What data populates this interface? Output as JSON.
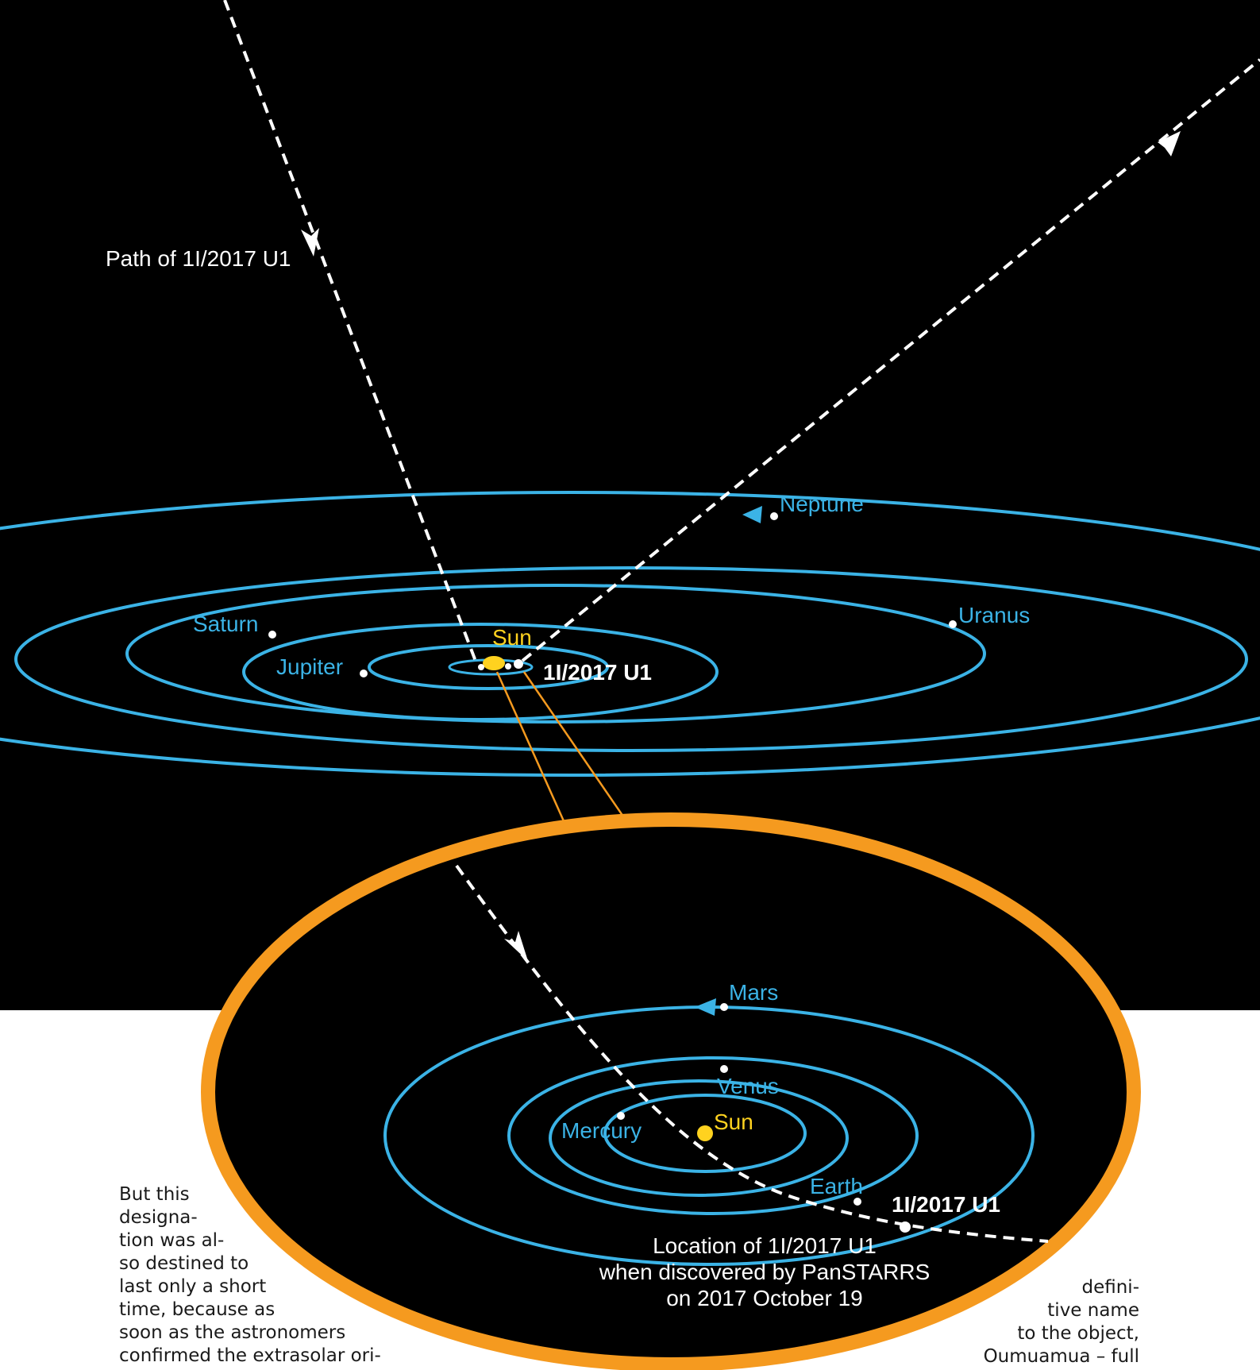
{
  "colors": {
    "orbit": "#3bb3e6",
    "orange": "#f59a1f",
    "sun": "#ffd21f",
    "path": "#ffffff",
    "space": "#000000"
  },
  "labels": {
    "path": "Path of 1I/2017 U1",
    "neptune": "Neptune",
    "uranus": "Uranus",
    "saturn": "Saturn",
    "jupiter": "Jupiter",
    "sun_outer": "Sun",
    "object_outer": "1I/2017 U1",
    "mars": "Mars",
    "venus": "Venus",
    "mercury": "Mercury",
    "sun_inner": "Sun",
    "earth": "Earth",
    "object_inner": "1I/2017 U1",
    "discovery_line1": "Location of 1I/2017 U1",
    "discovery_line2": "when discovered by PanSTARRS",
    "discovery_line3": "on 2017 October 19"
  },
  "text_left": [
    "But this",
    "designa-",
    "tion was al-",
    "so destined to",
    "last only a short",
    "time,   because   as",
    "soon as the astronomers",
    "confirmed the extrasolar ori-"
  ],
  "text_right": [
    "defini-",
    "tive name",
    "to the object,",
    "Oumuamua – full"
  ]
}
